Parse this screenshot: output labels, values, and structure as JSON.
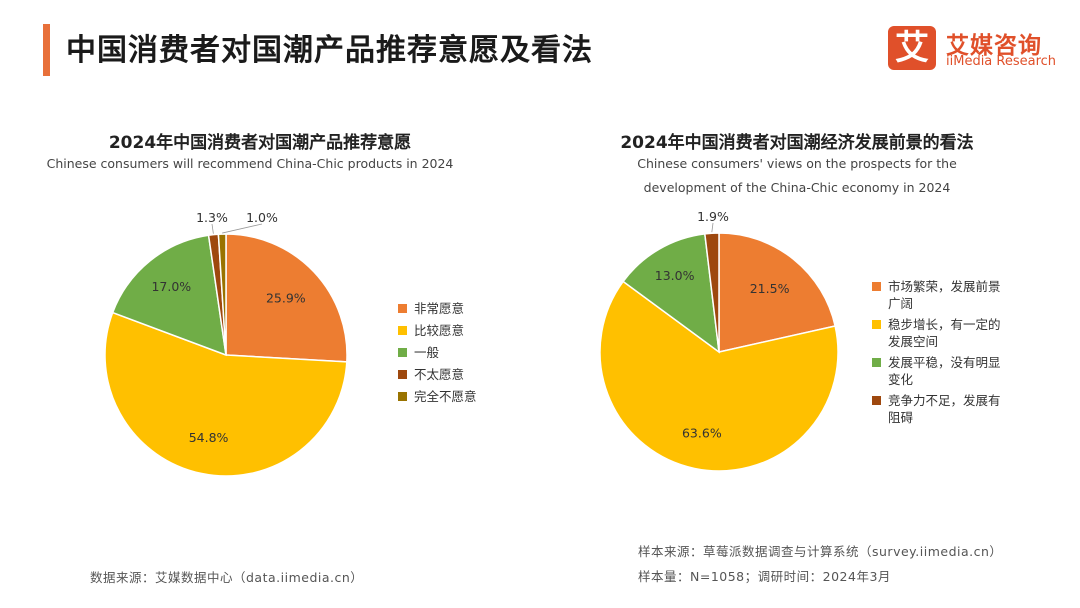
{
  "header": {
    "title": "中国消费者对国潮产品推荐意愿及看法",
    "logo_mark": "艾",
    "logo_cn": "艾媒咨询",
    "logo_en": "iiMedia Research"
  },
  "chart_data": [
    {
      "type": "pie",
      "title": "2024年中国消费者对国潮产品推荐意愿",
      "subtitle_lines": [
        "Chinese consumers will recommend China-Chic products in 2024"
      ],
      "categories": [
        "非常愿意",
        "比较愿意",
        "一般",
        "不太愿意",
        "完全不愿意"
      ],
      "values": [
        25.9,
        54.8,
        17.0,
        1.3,
        1.0
      ],
      "labels": [
        "25.9%",
        "54.8%",
        "17.0%",
        "1.3%",
        "1.0%"
      ],
      "colors": [
        "#ed7d31",
        "#ffc000",
        "#70ad47",
        "#9e480e",
        "#997300"
      ],
      "legend_position": "right"
    },
    {
      "type": "pie",
      "title": "2024年中国消费者对国潮经济发展前景的看法",
      "subtitle_lines": [
        "Chinese consumers' views on the prospects for the",
        "development of the China-Chic economy in 2024"
      ],
      "categories": [
        "市场繁荣，发展前景广阔",
        "稳步增长，有一定的发展空间",
        "发展平稳，没有明显变化",
        "竞争力不足，发展有阻碍"
      ],
      "legend_lines": [
        [
          "市场繁荣，发展前景",
          "广阔"
        ],
        [
          "稳步增长，有一定的",
          "发展空间"
        ],
        [
          "发展平稳，没有明显",
          "变化"
        ],
        [
          "竞争力不足，发展有",
          "阻碍"
        ]
      ],
      "values": [
        21.5,
        63.6,
        13.0,
        1.9
      ],
      "labels": [
        "21.5%",
        "63.6%",
        "13.0%",
        "1.9%"
      ],
      "colors": [
        "#ed7d31",
        "#ffc000",
        "#70ad47",
        "#9e480e"
      ],
      "legend_position": "right"
    }
  ],
  "footer": {
    "left_source": "数据来源：艾媒数据中心（data.iimedia.cn）",
    "sample_source": "样本来源：草莓派数据调查与计算系统（survey.iimedia.cn）",
    "sample_size": "样本量：N=1058；调研时间：2024年3月"
  }
}
